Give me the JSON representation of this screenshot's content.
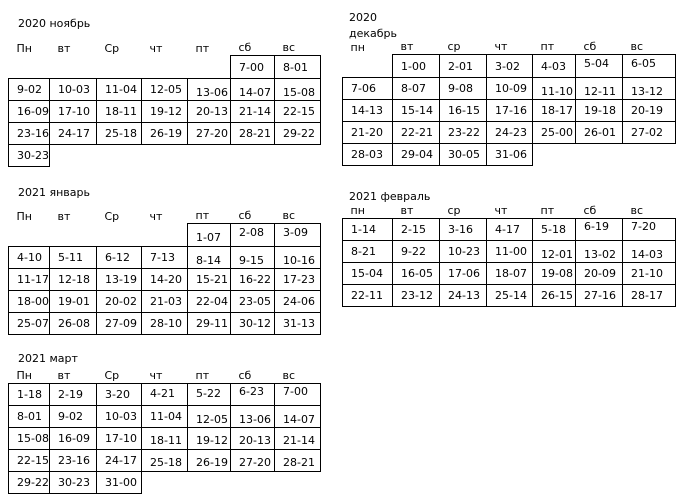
{
  "page": {
    "background_color": "#ffffff",
    "text_color": "#000000",
    "border_color": "#000000"
  },
  "months": [
    {
      "key": "november-2020",
      "title": "2020 ноябрь",
      "headers": [
        "Пн",
        "вт",
        "Ср",
        "чт",
        "пт",
        "сб",
        "вс"
      ],
      "weeks": [
        [
          null,
          null,
          null,
          null,
          null,
          "7-00",
          "8-01"
        ],
        [
          "9-02",
          "10-03",
          "11-04",
          "12-05",
          "13-06",
          "14-07",
          "15-08"
        ],
        [
          "16-09",
          "17-10",
          "18-11",
          "19-12",
          "20-13",
          "21-14",
          "22-15"
        ],
        [
          "23-16",
          "24-17",
          "25-18",
          "26-19",
          "27-20",
          "28-21",
          "29-22"
        ],
        [
          "30-23",
          null,
          null,
          null,
          null,
          null,
          null
        ]
      ]
    },
    {
      "key": "december-2020",
      "title": "2020\nдекабрь",
      "headers": [
        "пн",
        "вт",
        "ср",
        "чт",
        "пт",
        "сб",
        "вс"
      ],
      "weeks": [
        [
          null,
          "1-00",
          "2-01",
          "3-02",
          "4-03",
          "5-04",
          "6-05"
        ],
        [
          "7-06",
          "8-07",
          "9-08",
          "10-09",
          "11-10",
          "12-11",
          "13-12"
        ],
        [
          "14-13",
          "15-14",
          "16-15",
          "17-16",
          "18-17",
          "19-18",
          "20-19"
        ],
        [
          "21-20",
          "22-21",
          "23-22",
          "24-23",
          "25-00",
          "26-01",
          "27-02"
        ],
        [
          "28-03",
          "29-04",
          "30-05",
          "31-06",
          null,
          null,
          null
        ]
      ]
    },
    {
      "key": "january-2021",
      "title": "2021 январь",
      "headers": [
        "Пн",
        "вт",
        "Ср",
        "чт",
        "пт",
        "сб",
        "вс"
      ],
      "weeks": [
        [
          null,
          null,
          null,
          null,
          "1-07",
          "2-08",
          "3-09"
        ],
        [
          "4-10",
          "5-11",
          "6-12",
          "7-13",
          "8-14",
          "9-15",
          "10-16"
        ],
        [
          "11-17",
          "12-18",
          "13-19",
          "14-20",
          "15-21",
          "16-22",
          "17-23"
        ],
        [
          "18-00",
          "19-01",
          "20-02",
          "21-03",
          "22-04",
          "23-05",
          "24-06"
        ],
        [
          "25-07",
          "26-08",
          "27-09",
          "28-10",
          "29-11",
          "30-12",
          "31-13"
        ]
      ]
    },
    {
      "key": "february-2021",
      "title": "2021 февраль",
      "headers": [
        "пн",
        "вт",
        "ср",
        "чт",
        "пт",
        "сб",
        "вс"
      ],
      "weeks": [
        [
          "1-14",
          "2-15",
          "3-16",
          "4-17",
          "5-18",
          "6-19",
          "7-20"
        ],
        [
          "8-21",
          "9-22",
          "10-23",
          "11-00",
          "12-01",
          "13-02",
          "14-03"
        ],
        [
          "15-04",
          "16-05",
          "17-06",
          "18-07",
          "19-08",
          "20-09",
          "21-10"
        ],
        [
          "22-11",
          "23-12",
          "24-13",
          "25-14",
          "26-15",
          "27-16",
          "28-17"
        ]
      ]
    },
    {
      "key": "march-2021",
      "title": "2021 март",
      "headers": [
        "Пн",
        "вт",
        "Ср",
        "чт",
        "пт",
        "сб",
        "вс"
      ],
      "weeks": [
        [
          "1-18",
          "2-19",
          "3-20",
          "4-21",
          "5-22",
          "6-23",
          "7-00"
        ],
        [
          "8-01",
          "9-02",
          "10-03",
          "11-04",
          "12-05",
          "13-06",
          "14-07"
        ],
        [
          "15-08",
          "16-09",
          "17-10",
          "18-11",
          "19-12",
          "20-13",
          "21-14"
        ],
        [
          "22-15",
          "23-16",
          "24-17",
          "25-18",
          "26-19",
          "27-20",
          "28-21"
        ],
        [
          "29-22",
          "30-23",
          "31-00",
          null,
          null,
          null,
          null
        ]
      ]
    }
  ]
}
